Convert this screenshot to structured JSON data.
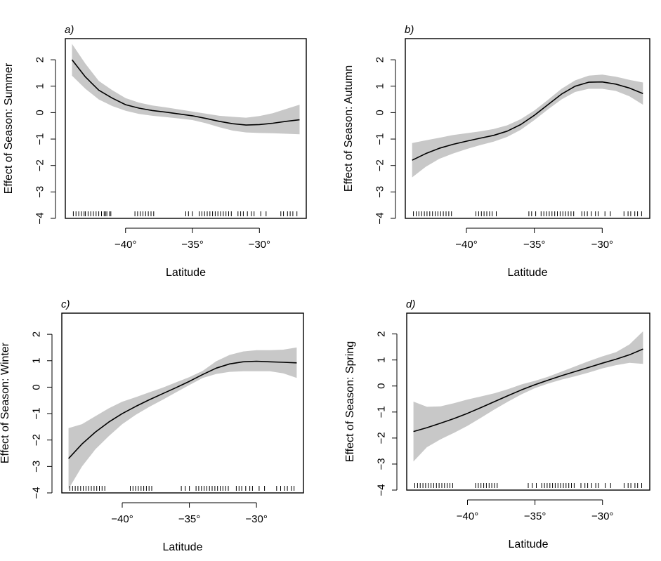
{
  "figure": {
    "panels": [
      {
        "id": "a",
        "label": "a)",
        "ylabel": "Effect of Season: Summer",
        "xlabel": "Latitude"
      },
      {
        "id": "b",
        "label": "b)",
        "ylabel": "Effect of Season: Autumn",
        "xlabel": "Latitude"
      },
      {
        "id": "c",
        "label": "c)",
        "ylabel": "Effect of Season: Winter",
        "xlabel": "Latitude"
      },
      {
        "id": "d",
        "label": "d)",
        "ylabel": "Effect of Season: Spring",
        "xlabel": "Latitude"
      }
    ]
  },
  "chart_data": [
    {
      "type": "line",
      "label": "a)",
      "ylabel": "Effect of Season: Summer",
      "xlabel": "Latitude",
      "xlim": [
        -44.5,
        -26.5
      ],
      "ylim": [
        -4,
        2.8
      ],
      "xticks": [
        -40,
        -35,
        -30
      ],
      "xtick_labels": [
        "−40°",
        "−35°",
        "−30°"
      ],
      "yticks": [
        -4,
        -3,
        -2,
        -1,
        0,
        1,
        2
      ],
      "ytick_labels": [
        "−4",
        "−3",
        "−2",
        "−1",
        "0",
        "1",
        "2"
      ],
      "x": [
        -44,
        -43,
        -42,
        -41,
        -40,
        -39,
        -38,
        -37,
        -36,
        -35,
        -34,
        -33,
        -32,
        -31,
        -30,
        -29,
        -28,
        -27
      ],
      "y": [
        2.0,
        1.35,
        0.85,
        0.55,
        0.3,
        0.17,
        0.08,
        0.02,
        -0.05,
        -0.12,
        -0.22,
        -0.33,
        -0.42,
        -0.47,
        -0.45,
        -0.4,
        -0.33,
        -0.27
      ],
      "lower": [
        1.4,
        0.9,
        0.5,
        0.25,
        0.07,
        -0.05,
        -0.12,
        -0.17,
        -0.22,
        -0.28,
        -0.4,
        -0.55,
        -0.68,
        -0.75,
        -0.77,
        -0.78,
        -0.8,
        -0.82
      ],
      "upper": [
        2.6,
        1.85,
        1.2,
        0.85,
        0.55,
        0.38,
        0.27,
        0.2,
        0.12,
        0.04,
        -0.04,
        -0.12,
        -0.16,
        -0.19,
        -0.13,
        -0.02,
        0.14,
        0.3
      ],
      "rug": [
        -43.9,
        -43.7,
        -43.5,
        -43.3,
        -43.1,
        -43,
        -42.8,
        -42.6,
        -42.4,
        -42.2,
        -42.0,
        -41.8,
        -41.6,
        -41.5,
        -41.4,
        -41.2,
        -41.1,
        -39.3,
        -39.1,
        -38.9,
        -38.7,
        -38.5,
        -38.3,
        -38.1,
        -37.9,
        -35.5,
        -35.3,
        -35.0,
        -34.5,
        -34.3,
        -34.1,
        -33.9,
        -33.7,
        -33.5,
        -33.3,
        -33.1,
        -32.9,
        -32.7,
        -32.5,
        -32.3,
        -32.1,
        -31.6,
        -31.4,
        -31.2,
        -30.9,
        -30.6,
        -30.4,
        -29.9,
        -29.5,
        -28.4,
        -28.2,
        -27.9,
        -27.7,
        -27.5,
        -27.2
      ]
    },
    {
      "type": "line",
      "label": "b)",
      "ylabel": "Effect of Season: Autumn",
      "xlabel": "Latitude",
      "xlim": [
        -44.5,
        -26.5
      ],
      "ylim": [
        -4,
        2.8
      ],
      "xticks": [
        -40,
        -35,
        -30
      ],
      "xtick_labels": [
        "−40°",
        "−35°",
        "−30°"
      ],
      "yticks": [
        -4,
        -3,
        -2,
        -1,
        0,
        1,
        2
      ],
      "ytick_labels": [
        "−4",
        "−3",
        "−2",
        "−1",
        "0",
        "1",
        "2"
      ],
      "x": [
        -44,
        -43,
        -42,
        -41,
        -40,
        -39,
        -38,
        -37,
        -36,
        -35,
        -34,
        -33,
        -32,
        -31,
        -30,
        -29,
        -28,
        -27
      ],
      "y": [
        -1.8,
        -1.55,
        -1.35,
        -1.2,
        -1.08,
        -0.97,
        -0.86,
        -0.7,
        -0.45,
        -0.1,
        0.3,
        0.7,
        1.0,
        1.15,
        1.16,
        1.08,
        0.93,
        0.72
      ],
      "lower": [
        -2.45,
        -2.05,
        -1.75,
        -1.55,
        -1.38,
        -1.23,
        -1.1,
        -0.92,
        -0.65,
        -0.28,
        0.12,
        0.5,
        0.78,
        0.9,
        0.9,
        0.82,
        0.62,
        0.3
      ],
      "upper": [
        -1.15,
        -1.05,
        -0.95,
        -0.85,
        -0.78,
        -0.71,
        -0.62,
        -0.48,
        -0.25,
        0.08,
        0.48,
        0.9,
        1.22,
        1.4,
        1.44,
        1.36,
        1.24,
        1.14
      ],
      "rug": [
        -43.9,
        -43.7,
        -43.5,
        -43.3,
        -43.1,
        -42.9,
        -42.7,
        -42.5,
        -42.3,
        -42.1,
        -41.9,
        -41.7,
        -41.5,
        -41.3,
        -41.1,
        -39.3,
        -39.1,
        -38.9,
        -38.7,
        -38.5,
        -38.3,
        -38.1,
        -37.8,
        -35.4,
        -35.2,
        -34.9,
        -34.5,
        -34.3,
        -34.1,
        -33.9,
        -33.7,
        -33.5,
        -33.3,
        -33.1,
        -32.9,
        -32.7,
        -32.5,
        -32.3,
        -32.1,
        -31.5,
        -31.3,
        -31.1,
        -30.8,
        -30.5,
        -30.3,
        -29.8,
        -29.4,
        -28.4,
        -28.1,
        -27.9,
        -27.6,
        -27.4,
        -27.1
      ]
    },
    {
      "type": "line",
      "label": "c)",
      "ylabel": "Effect of Season: Winter",
      "xlabel": "Latitude",
      "xlim": [
        -44.5,
        -26.5
      ],
      "ylim": [
        -4,
        2.8
      ],
      "xticks": [
        -40,
        -35,
        -30
      ],
      "xtick_labels": [
        "−40°",
        "−35°",
        "−30°"
      ],
      "yticks": [
        -4,
        -3,
        -2,
        -1,
        0,
        1,
        2
      ],
      "ytick_labels": [
        "−4",
        "−3",
        "−2",
        "−1",
        "0",
        "1",
        "2"
      ],
      "x": [
        -44,
        -43,
        -42,
        -41,
        -40,
        -39,
        -38,
        -37,
        -36,
        -35,
        -34,
        -33,
        -32,
        -31,
        -30,
        -29,
        -28,
        -27
      ],
      "y": [
        -2.7,
        -2.15,
        -1.7,
        -1.32,
        -1.0,
        -0.73,
        -0.48,
        -0.25,
        -0.02,
        0.22,
        0.48,
        0.72,
        0.88,
        0.96,
        0.98,
        0.96,
        0.94,
        0.92
      ],
      "lower": [
        -3.85,
        -3.0,
        -2.35,
        -1.85,
        -1.4,
        -1.05,
        -0.75,
        -0.48,
        -0.2,
        0.08,
        0.35,
        0.5,
        0.58,
        0.6,
        0.6,
        0.6,
        0.52,
        0.35
      ],
      "upper": [
        -1.55,
        -1.4,
        -1.1,
        -0.8,
        -0.55,
        -0.38,
        -0.2,
        -0.02,
        0.18,
        0.38,
        0.62,
        0.98,
        1.22,
        1.35,
        1.4,
        1.4,
        1.42,
        1.5
      ],
      "rug": [
        -43.9,
        -43.7,
        -43.5,
        -43.3,
        -43.1,
        -42.9,
        -42.7,
        -42.5,
        -42.3,
        -42.1,
        -41.9,
        -41.7,
        -41.5,
        -41.3,
        -39.4,
        -39.2,
        -39.0,
        -38.8,
        -38.6,
        -38.4,
        -38.2,
        -38.0,
        -37.8,
        -35.6,
        -35.3,
        -35.0,
        -34.5,
        -34.3,
        -34.1,
        -33.9,
        -33.7,
        -33.5,
        -33.3,
        -33.1,
        -32.9,
        -32.7,
        -32.5,
        -32.3,
        -32.1,
        -31.5,
        -31.3,
        -31.1,
        -30.8,
        -30.5,
        -30.3,
        -29.8,
        -29.4,
        -28.5,
        -28.2,
        -27.9,
        -27.7,
        -27.4,
        -27.2
      ]
    },
    {
      "type": "line",
      "label": "d)",
      "ylabel": "Effect of Season: Spring",
      "xlabel": "Latitude",
      "xlim": [
        -44.5,
        -26.5
      ],
      "ylim": [
        -4,
        2.8
      ],
      "xticks": [
        -40,
        -35,
        -30
      ],
      "xtick_labels": [
        "−40°",
        "−35°",
        "−30°"
      ],
      "yticks": [
        -4,
        -3,
        -2,
        -1,
        0,
        1,
        2
      ],
      "ytick_labels": [
        "−4",
        "−3",
        "−2",
        "−1",
        "0",
        "1",
        "2"
      ],
      "x": [
        -44,
        -43,
        -42,
        -41,
        -40,
        -39,
        -38,
        -37,
        -36,
        -35,
        -34,
        -33,
        -32,
        -31,
        -30,
        -29,
        -28,
        -27
      ],
      "y": [
        -1.75,
        -1.6,
        -1.43,
        -1.25,
        -1.05,
        -0.83,
        -0.6,
        -0.37,
        -0.15,
        0.05,
        0.23,
        0.4,
        0.56,
        0.72,
        0.88,
        1.03,
        1.2,
        1.42
      ],
      "lower": [
        -2.9,
        -2.35,
        -2.05,
        -1.8,
        -1.53,
        -1.22,
        -0.9,
        -0.6,
        -0.32,
        -0.08,
        0.1,
        0.25,
        0.38,
        0.52,
        0.68,
        0.8,
        0.89,
        0.85
      ],
      "upper": [
        -0.6,
        -0.8,
        -0.78,
        -0.66,
        -0.52,
        -0.4,
        -0.28,
        -0.12,
        0.06,
        0.2,
        0.36,
        0.56,
        0.76,
        0.96,
        1.14,
        1.3,
        1.6,
        2.1
      ],
      "rug": [
        -43.9,
        -43.7,
        -43.5,
        -43.3,
        -43.1,
        -42.9,
        -42.7,
        -42.5,
        -42.3,
        -42.1,
        -41.9,
        -41.7,
        -41.5,
        -41.3,
        -41.1,
        -39.4,
        -39.2,
        -39.0,
        -38.8,
        -38.6,
        -38.4,
        -38.2,
        -38.0,
        -37.8,
        -35.5,
        -35.2,
        -34.9,
        -34.5,
        -34.3,
        -34.1,
        -33.9,
        -33.7,
        -33.5,
        -33.3,
        -33.1,
        -32.9,
        -32.7,
        -32.5,
        -32.3,
        -32.1,
        -31.6,
        -31.3,
        -31.1,
        -30.8,
        -30.5,
        -30.3,
        -29.8,
        -29.4,
        -28.4,
        -28.1,
        -27.9,
        -27.6,
        -27.4,
        -27.1
      ]
    }
  ]
}
